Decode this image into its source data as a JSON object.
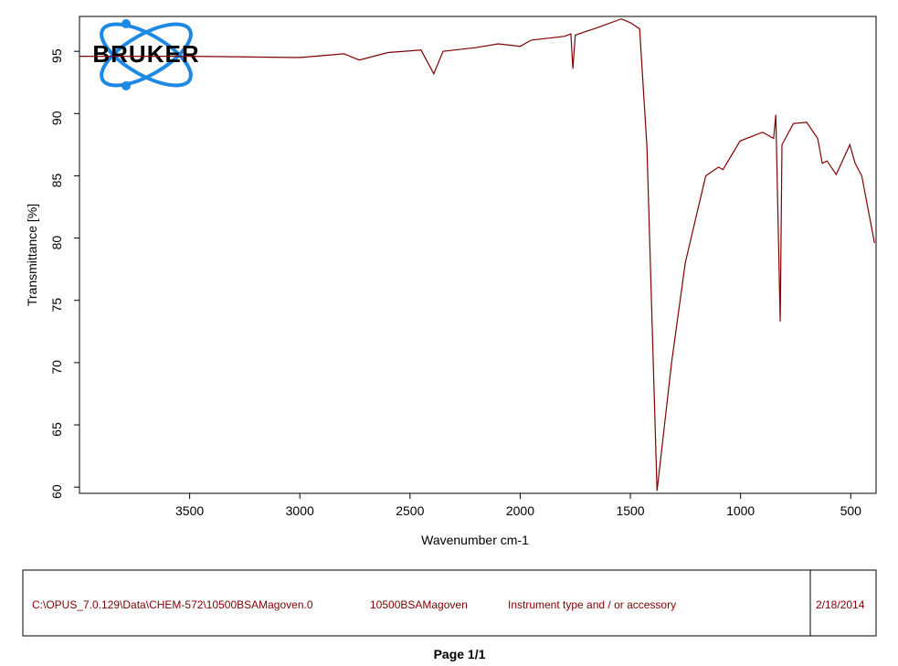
{
  "chart_data": {
    "type": "line",
    "logo": "BRUKER",
    "xlabel": "Wavenumber cm-1",
    "ylabel": "Transmittance [%]",
    "x": [
      4000,
      3500,
      3000,
      2800,
      2730,
      2600,
      2450,
      2392,
      2350,
      2200,
      2100,
      2000,
      1950,
      1800,
      1770,
      1761,
      1750,
      1650,
      1541,
      1500,
      1458,
      1425,
      1379,
      1313,
      1251,
      1158,
      1100,
      1080,
      1002,
      900,
      850,
      840,
      820,
      812,
      760,
      700,
      650,
      629,
      608,
      566,
      504,
      480,
      450,
      392
    ],
    "values": [
      94.6,
      94.6,
      94.5,
      94.8,
      94.3,
      94.9,
      95.1,
      93.2,
      95.0,
      95.3,
      95.6,
      95.4,
      95.9,
      96.2,
      96.4,
      93.6,
      96.3,
      96.9,
      97.6,
      97.3,
      96.8,
      87.4,
      59.7,
      70.0,
      78.0,
      85.0,
      85.7,
      85.5,
      87.8,
      88.5,
      88.0,
      89.9,
      73.3,
      87.5,
      89.2,
      89.3,
      88.0,
      86.0,
      86.2,
      85.1,
      87.5,
      86.0,
      85.0,
      79.6
    ],
    "color": "#800000",
    "xlim": [
      4000,
      385
    ],
    "ylim": [
      59.5,
      97.8
    ],
    "xticks": [
      3500,
      3000,
      2500,
      2000,
      1500,
      1000,
      500
    ],
    "yticks": [
      60,
      65,
      70,
      75,
      80,
      85,
      90,
      95
    ]
  },
  "footer": {
    "path": "C:\\OPUS_7.0.129\\Data\\CHEM-572\\10500BSAMagoven.0",
    "sample": "10500BSAMagoven",
    "instrument": "Instrument type and / or accessory",
    "date": "2/18/2014",
    "page": "Page 1/1"
  }
}
